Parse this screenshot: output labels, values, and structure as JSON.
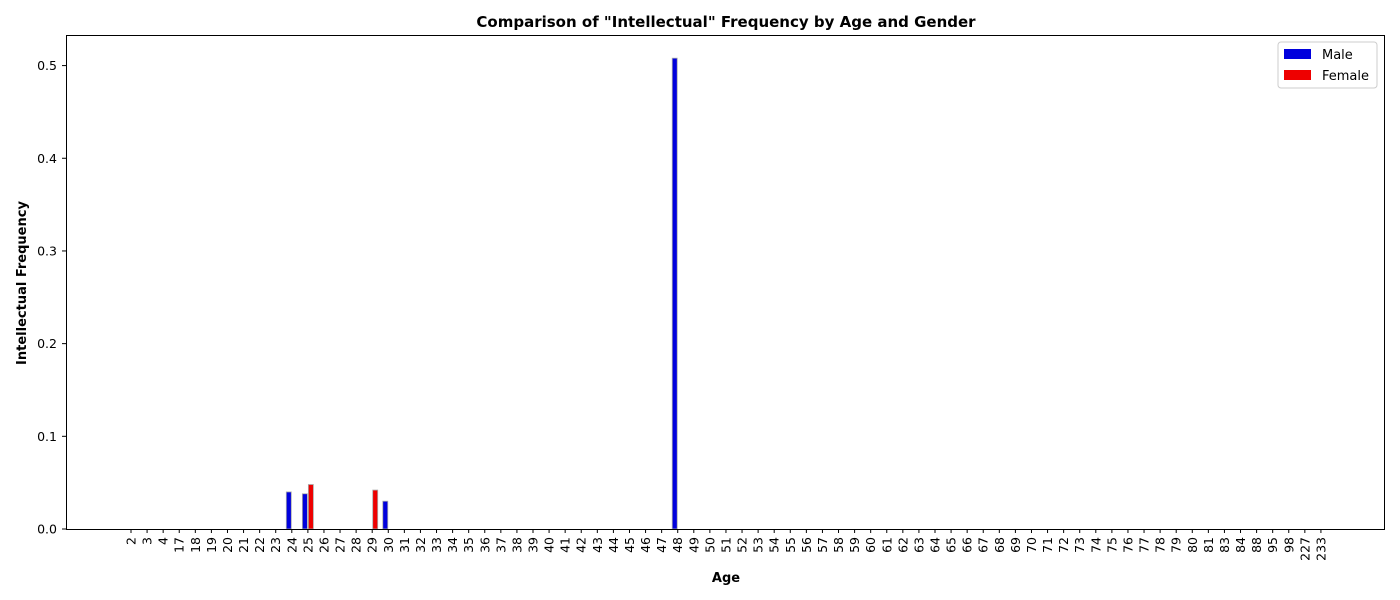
{
  "chart_data": {
    "type": "bar",
    "title": "Comparison of \"Intellectual\" Frequency by Age and Gender",
    "xlabel": "Age",
    "ylabel": "Intellectual Frequency",
    "ylim": [
      0,
      0.533
    ],
    "yticks": [
      "0.0",
      "0.1",
      "0.2",
      "0.3",
      "0.4",
      "0.5"
    ],
    "grid": false,
    "legend_position": "top-right",
    "categories": [
      "2",
      "3",
      "4",
      "17",
      "18",
      "19",
      "20",
      "21",
      "22",
      "23",
      "24",
      "25",
      "26",
      "27",
      "28",
      "29",
      "30",
      "31",
      "32",
      "33",
      "34",
      "35",
      "36",
      "37",
      "38",
      "39",
      "40",
      "41",
      "42",
      "43",
      "44",
      "45",
      "46",
      "47",
      "48",
      "49",
      "50",
      "51",
      "52",
      "53",
      "54",
      "55",
      "56",
      "57",
      "58",
      "59",
      "60",
      "61",
      "62",
      "63",
      "64",
      "65",
      "66",
      "67",
      "68",
      "69",
      "70",
      "71",
      "72",
      "73",
      "74",
      "75",
      "76",
      "77",
      "78",
      "79",
      "80",
      "81",
      "83",
      "84",
      "88",
      "95",
      "98",
      "227",
      "233"
    ],
    "series": [
      {
        "name": "Male",
        "color": "#0000dd",
        "values": [
          0,
          0,
          0,
          0,
          0,
          0,
          0,
          0,
          0,
          0,
          0.04,
          0.038,
          0,
          0,
          0,
          0,
          0.03,
          0,
          0,
          0,
          0,
          0,
          0,
          0,
          0,
          0,
          0,
          0,
          0,
          0,
          0,
          0,
          0,
          0,
          0.508,
          0,
          0,
          0,
          0,
          0,
          0,
          0,
          0,
          0,
          0,
          0,
          0,
          0,
          0,
          0,
          0,
          0,
          0,
          0,
          0,
          0,
          0,
          0,
          0,
          0,
          0,
          0,
          0,
          0,
          0,
          0,
          0,
          0,
          0,
          0,
          0,
          0,
          0,
          0,
          0
        ]
      },
      {
        "name": "Female",
        "color": "#ee0000",
        "values": [
          0,
          0,
          0,
          0,
          0,
          0,
          0,
          0,
          0,
          0,
          0,
          0.048,
          0,
          0,
          0,
          0.042,
          0,
          0,
          0,
          0,
          0,
          0,
          0,
          0,
          0,
          0,
          0,
          0,
          0,
          0,
          0,
          0,
          0,
          0,
          0,
          0,
          0,
          0,
          0,
          0,
          0,
          0,
          0,
          0,
          0,
          0,
          0,
          0,
          0,
          0,
          0,
          0,
          0,
          0,
          0,
          0,
          0,
          0,
          0,
          0,
          0,
          0,
          0,
          0,
          0,
          0,
          0,
          0,
          0,
          0,
          0,
          0,
          0,
          0,
          0
        ]
      }
    ]
  }
}
